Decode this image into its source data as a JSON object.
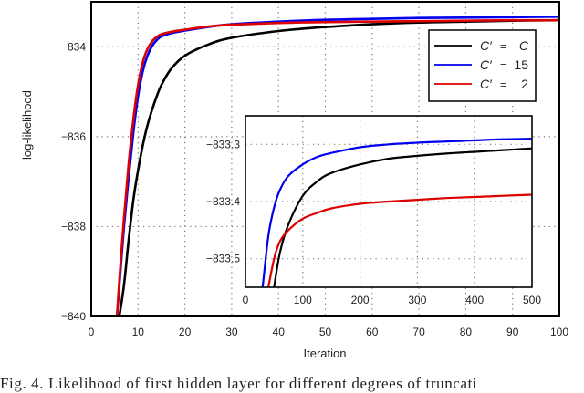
{
  "chart_data": [
    {
      "type": "line",
      "role": "main",
      "title": "",
      "xlabel": "Iteration",
      "ylabel": "log-likelihood",
      "xlim": [
        0,
        100
      ],
      "ylim": [
        -840,
        -833
      ],
      "xticks": [
        0,
        10,
        20,
        30,
        40,
        50,
        60,
        70,
        80,
        90,
        100
      ],
      "yticks": [
        -840,
        -838,
        -836,
        -834
      ],
      "ytick_labels": [
        "−840",
        "−838",
        "−836",
        "−834"
      ],
      "grid": true,
      "legend_position": "upper right",
      "x": [
        5.5,
        6,
        7,
        8,
        9,
        10,
        11,
        12,
        13,
        14,
        15,
        17,
        20,
        25,
        30,
        40,
        50,
        60,
        70,
        80,
        90,
        100
      ],
      "series": [
        {
          "name": "C' = C",
          "color": "#000000",
          "values": [
            null,
            -840.0,
            -839.3,
            -838.3,
            -837.4,
            -836.75,
            -836.2,
            -835.75,
            -835.4,
            -835.1,
            -834.85,
            -834.5,
            -834.2,
            -833.95,
            -833.8,
            -833.65,
            -833.56,
            -833.5,
            -833.46,
            -833.44,
            -833.42,
            -833.41
          ]
        },
        {
          "name": "C' = 15",
          "color": "#0000ee",
          "values": [
            -840.0,
            -839.3,
            -838.0,
            -836.9,
            -835.9,
            -835.1,
            -834.55,
            -834.2,
            -833.98,
            -833.85,
            -833.77,
            -833.7,
            -833.64,
            -833.56,
            -833.5,
            -833.44,
            -833.4,
            -833.38,
            -833.36,
            -833.35,
            -833.34,
            -833.33
          ]
        },
        {
          "name": "C' = 2",
          "color": "#dd0000",
          "values": [
            -840.0,
            -839.2,
            -837.8,
            -836.6,
            -835.6,
            -834.85,
            -834.35,
            -834.05,
            -833.88,
            -833.78,
            -833.72,
            -833.67,
            -833.62,
            -833.55,
            -833.51,
            -833.47,
            -833.45,
            -833.44,
            -833.43,
            -833.42,
            -833.41,
            -833.41
          ]
        }
      ],
      "legend": [
        "C′ = C",
        "C′ = 15",
        "C′ = 2"
      ]
    },
    {
      "type": "line",
      "role": "inset",
      "xlim": [
        0,
        500
      ],
      "ylim": [
        -833.55,
        -833.25
      ],
      "xticks": [
        0,
        100,
        200,
        300,
        400,
        500
      ],
      "yticks": [
        -833.5,
        -833.4,
        -833.3
      ],
      "ytick_labels": [
        "−833.5",
        "−833.4",
        "−833.3"
      ],
      "grid": true,
      "x": [
        30,
        40,
        50,
        60,
        75,
        100,
        125,
        150,
        200,
        250,
        300,
        350,
        400,
        450,
        500
      ],
      "series": [
        {
          "name": "C' = C",
          "color": "#000000",
          "values": [
            null,
            null,
            -833.55,
            -833.49,
            -833.44,
            -833.39,
            -833.365,
            -833.35,
            -833.335,
            -833.325,
            -833.32,
            -833.316,
            -833.313,
            -833.31,
            -833.307
          ]
        },
        {
          "name": "C' = 15",
          "color": "#0000ee",
          "values": [
            -833.55,
            -833.46,
            -833.41,
            -833.38,
            -833.355,
            -833.335,
            -833.322,
            -833.315,
            -833.305,
            -833.3,
            -833.297,
            -833.295,
            -833.293,
            -833.291,
            -833.29
          ]
        },
        {
          "name": "C' = 2",
          "color": "#dd0000",
          "values": [
            null,
            -833.55,
            -833.5,
            -833.47,
            -833.45,
            -833.43,
            -833.42,
            -833.412,
            -833.404,
            -833.4,
            -833.397,
            -833.394,
            -833.392,
            -833.39,
            -833.388
          ]
        }
      ]
    }
  ],
  "figure": {
    "xlabel": "Iteration",
    "ylabel": "log-likelihood",
    "legend": {
      "entries": [
        {
          "label_main": "C′",
          "label_eq": "=",
          "label_val": "C"
        },
        {
          "label_main": "C′",
          "label_eq": "=",
          "label_val": "15"
        },
        {
          "label_main": "C′",
          "label_eq": "=",
          "label_val": "2"
        }
      ]
    },
    "colors": {
      "black": "#000000",
      "blue": "#0000ee",
      "red": "#dd0000",
      "grid": "#777777"
    },
    "caption": "Fig. 4.   Likelihood of first hidden layer for different degrees of truncati"
  }
}
